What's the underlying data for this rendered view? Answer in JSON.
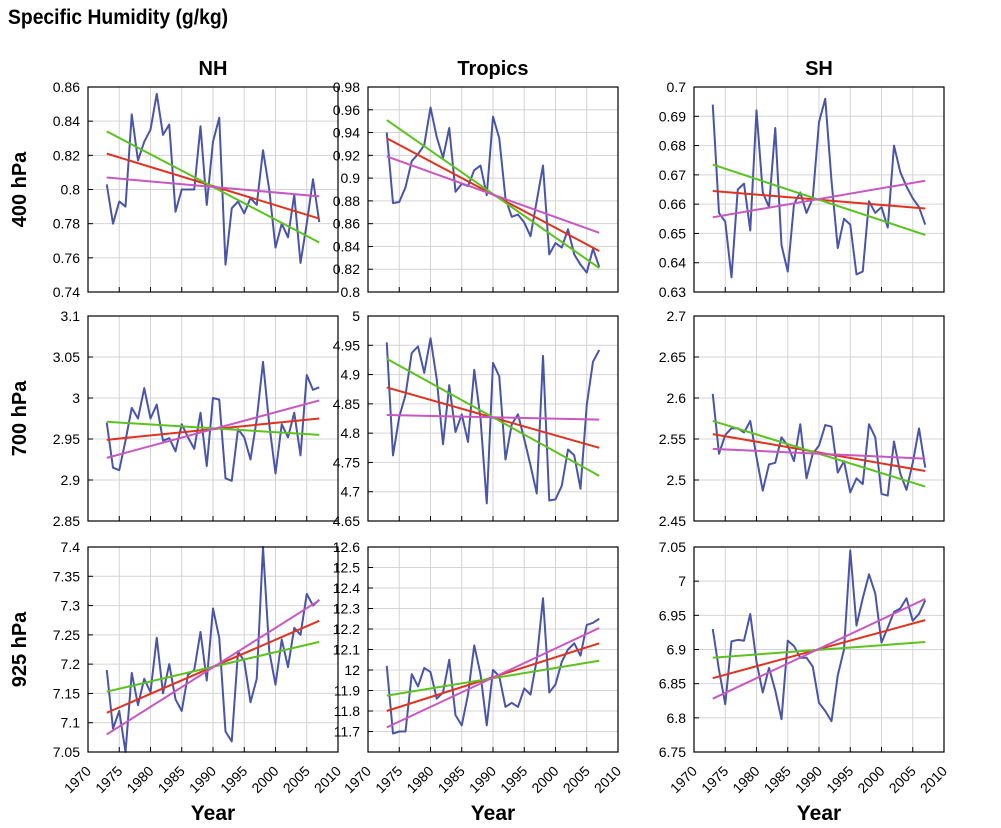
{
  "figure": {
    "title": "Specific Humidity (g/kg)",
    "x_axis_label": "Year",
    "x_ticks": [
      "1970",
      "1975",
      "1980",
      "1985",
      "1990",
      "1995",
      "2000",
      "2005",
      "2010"
    ],
    "x_range": [
      1970,
      2010
    ],
    "columns": [
      "NH",
      "Tropics",
      "SH"
    ],
    "rows": [
      "400 hPa",
      "700 hPa",
      "925 hPa"
    ],
    "colors": {
      "data": "#4a55a8",
      "trend_red": "#e0321e",
      "trend_green": "#5cc21e",
      "trend_magenta": "#c857c2",
      "grid": "#d4d4d4",
      "frame": "#000000"
    },
    "grid": true
  },
  "chart_data": [
    {
      "type": "line",
      "row": "400 hPa",
      "column": "NH",
      "x_start": 1973,
      "x_step": 1,
      "ylim": [
        0.74,
        0.86
      ],
      "yticks": [
        "0.74",
        "0.76",
        "0.78",
        "0.8",
        "0.82",
        "0.84",
        "0.86"
      ],
      "series": [
        {
          "values": [
            0.803,
            0.78,
            0.793,
            0.79,
            0.844,
            0.817,
            0.828,
            0.835,
            0.856,
            0.832,
            0.838,
            0.787,
            0.8,
            0.8,
            0.8,
            0.837,
            0.791,
            0.828,
            0.842,
            0.756,
            0.789,
            0.793,
            0.786,
            0.795,
            0.791,
            0.823,
            0.8,
            0.766,
            0.78,
            0.772,
            0.797,
            0.757,
            0.78,
            0.806,
            0.781
          ]
        }
      ],
      "trends": [
        {
          "color": "red",
          "x": [
            1973,
            2007
          ],
          "y": [
            0.821,
            0.783
          ]
        },
        {
          "color": "green",
          "x": [
            1973,
            2007
          ],
          "y": [
            0.834,
            0.769
          ]
        },
        {
          "color": "magenta",
          "x": [
            1973,
            2007
          ],
          "y": [
            0.807,
            0.796
          ]
        }
      ]
    },
    {
      "type": "line",
      "row": "400 hPa",
      "column": "Tropics",
      "x_start": 1973,
      "x_step": 1,
      "ylim": [
        0.8,
        0.98
      ],
      "yticks": [
        "0.8",
        "0.82",
        "0.84",
        "0.86",
        "0.88",
        "0.9",
        "0.92",
        "0.94",
        "0.96",
        "0.98"
      ],
      "series": [
        {
          "values": [
            0.94,
            0.878,
            0.879,
            0.892,
            0.915,
            0.921,
            0.929,
            0.962,
            0.936,
            0.918,
            0.944,
            0.888,
            0.895,
            0.893,
            0.907,
            0.911,
            0.885,
            0.954,
            0.935,
            0.882,
            0.866,
            0.868,
            0.861,
            0.849,
            0.88,
            0.911,
            0.833,
            0.843,
            0.839,
            0.855,
            0.833,
            0.824,
            0.817,
            0.838,
            0.822
          ]
        }
      ],
      "trends": [
        {
          "color": "red",
          "x": [
            1973,
            2007
          ],
          "y": [
            0.935,
            0.836
          ]
        },
        {
          "color": "green",
          "x": [
            1973,
            2007
          ],
          "y": [
            0.951,
            0.821
          ]
        },
        {
          "color": "magenta",
          "x": [
            1973,
            2007
          ],
          "y": [
            0.919,
            0.852
          ]
        }
      ]
    },
    {
      "type": "line",
      "row": "400 hPa",
      "column": "SH",
      "x_start": 1973,
      "x_step": 1,
      "ylim": [
        0.63,
        0.7
      ],
      "yticks": [
        "0.63",
        "0.64",
        "0.65",
        "0.66",
        "0.67",
        "0.68",
        "0.69",
        "0.7"
      ],
      "series": [
        {
          "values": [
            0.694,
            0.657,
            0.654,
            0.635,
            0.665,
            0.667,
            0.651,
            0.692,
            0.664,
            0.659,
            0.686,
            0.646,
            0.637,
            0.66,
            0.664,
            0.657,
            0.662,
            0.688,
            0.696,
            0.668,
            0.645,
            0.655,
            0.653,
            0.636,
            0.637,
            0.661,
            0.657,
            0.659,
            0.652,
            0.68,
            0.671,
            0.666,
            0.662,
            0.659,
            0.653
          ]
        }
      ],
      "trends": [
        {
          "color": "red",
          "x": [
            1973,
            2007
          ],
          "y": [
            0.6645,
            0.6585
          ]
        },
        {
          "color": "green",
          "x": [
            1973,
            2007
          ],
          "y": [
            0.6735,
            0.6495
          ]
        },
        {
          "color": "magenta",
          "x": [
            1973,
            2007
          ],
          "y": [
            0.6555,
            0.668
          ]
        }
      ]
    },
    {
      "type": "line",
      "row": "700 hPa",
      "column": "NH",
      "x_start": 1973,
      "x_step": 1,
      "ylim": [
        2.85,
        3.1
      ],
      "yticks": [
        "2.85",
        "2.9",
        "2.95",
        "3",
        "3.05",
        "3.1"
      ],
      "series": [
        {
          "values": [
            2.97,
            2.915,
            2.912,
            2.948,
            2.988,
            2.975,
            3.012,
            2.975,
            2.992,
            2.948,
            2.951,
            2.935,
            2.968,
            2.952,
            2.938,
            2.982,
            2.917,
            3.0,
            2.998,
            2.902,
            2.899,
            2.962,
            2.952,
            2.925,
            2.974,
            3.044,
            2.968,
            2.908,
            2.968,
            2.952,
            2.982,
            2.93,
            3.028,
            3.01,
            3.013
          ]
        }
      ],
      "trends": [
        {
          "color": "red",
          "x": [
            1973,
            2007
          ],
          "y": [
            2.949,
            2.975
          ]
        },
        {
          "color": "green",
          "x": [
            1973,
            2007
          ],
          "y": [
            2.971,
            2.955
          ]
        },
        {
          "color": "magenta",
          "x": [
            1973,
            2007
          ],
          "y": [
            2.927,
            2.997
          ]
        }
      ]
    },
    {
      "type": "line",
      "row": "700 hPa",
      "column": "Tropics",
      "x_start": 1973,
      "x_step": 1,
      "ylim": [
        4.65,
        5.0
      ],
      "yticks": [
        "4.65",
        "4.7",
        "4.75",
        "4.8",
        "4.85",
        "4.9",
        "4.95",
        "5"
      ],
      "series": [
        {
          "values": [
            4.955,
            4.762,
            4.828,
            4.865,
            4.937,
            4.948,
            4.903,
            4.962,
            4.892,
            4.781,
            4.882,
            4.802,
            4.832,
            4.785,
            4.908,
            4.825,
            4.68,
            4.92,
            4.897,
            4.755,
            4.815,
            4.832,
            4.79,
            4.745,
            4.697,
            4.932,
            4.685,
            4.687,
            4.71,
            4.772,
            4.762,
            4.705,
            4.848,
            4.922,
            4.942
          ]
        }
      ],
      "trends": [
        {
          "color": "red",
          "x": [
            1973,
            2007
          ],
          "y": [
            4.878,
            4.775
          ]
        },
        {
          "color": "green",
          "x": [
            1973,
            2007
          ],
          "y": [
            4.927,
            4.727
          ]
        },
        {
          "color": "magenta",
          "x": [
            1973,
            2007
          ],
          "y": [
            4.831,
            4.823
          ]
        }
      ]
    },
    {
      "type": "line",
      "row": "700 hPa",
      "column": "SH",
      "x_start": 1973,
      "x_step": 1,
      "ylim": [
        2.45,
        2.7
      ],
      "yticks": [
        "2.45",
        "2.5",
        "2.55",
        "2.6",
        "2.65",
        "2.7"
      ],
      "series": [
        {
          "values": [
            2.605,
            2.532,
            2.555,
            2.563,
            2.563,
            2.558,
            2.572,
            2.528,
            2.487,
            2.519,
            2.521,
            2.552,
            2.542,
            2.523,
            2.568,
            2.502,
            2.532,
            2.542,
            2.567,
            2.565,
            2.509,
            2.523,
            2.485,
            2.502,
            2.495,
            2.568,
            2.552,
            2.483,
            2.481,
            2.547,
            2.508,
            2.488,
            2.521,
            2.563,
            2.515
          ]
        }
      ],
      "trends": [
        {
          "color": "red",
          "x": [
            1973,
            2007
          ],
          "y": [
            2.556,
            2.511
          ]
        },
        {
          "color": "green",
          "x": [
            1973,
            2007
          ],
          "y": [
            2.572,
            2.492
          ]
        },
        {
          "color": "magenta",
          "x": [
            1973,
            2007
          ],
          "y": [
            2.538,
            2.526
          ]
        }
      ]
    },
    {
      "type": "line",
      "row": "925 hPa",
      "column": "NH",
      "x_start": 1973,
      "x_step": 1,
      "ylim": [
        7.05,
        7.4
      ],
      "yticks": [
        "7.05",
        "7.1",
        "7.15",
        "7.2",
        "7.25",
        "7.3",
        "7.35",
        "7.4"
      ],
      "series": [
        {
          "values": [
            7.19,
            7.09,
            7.12,
            7.05,
            7.185,
            7.13,
            7.175,
            7.152,
            7.245,
            7.15,
            7.2,
            7.14,
            7.12,
            7.182,
            7.19,
            7.255,
            7.172,
            7.295,
            7.245,
            7.085,
            7.068,
            7.222,
            7.205,
            7.135,
            7.175,
            7.4,
            7.222,
            7.165,
            7.242,
            7.195,
            7.262,
            7.25,
            7.32,
            7.3,
            7.31
          ]
        }
      ],
      "trends": [
        {
          "color": "red",
          "x": [
            1973,
            2007
          ],
          "y": [
            7.117,
            7.274
          ]
        },
        {
          "color": "green",
          "x": [
            1973,
            2007
          ],
          "y": [
            7.153,
            7.238
          ]
        },
        {
          "color": "magenta",
          "x": [
            1973,
            2007
          ],
          "y": [
            7.08,
            7.309
          ]
        }
      ]
    },
    {
      "type": "line",
      "row": "925 hPa",
      "column": "Tropics",
      "x_start": 1973,
      "x_step": 1,
      "ylim": [
        11.6,
        12.6
      ],
      "yticks": [
        "11.7",
        "11.8",
        "11.9",
        "12",
        "12.1",
        "12.2",
        "12.3",
        "12.4",
        "12.5",
        "12.6"
      ],
      "series": [
        {
          "values": [
            12.02,
            11.69,
            11.7,
            11.7,
            11.98,
            11.92,
            12.01,
            11.99,
            11.86,
            11.89,
            12.05,
            11.78,
            11.73,
            11.88,
            12.12,
            11.98,
            11.73,
            12.0,
            11.97,
            11.82,
            11.84,
            11.82,
            11.91,
            11.88,
            12.05,
            12.35,
            11.89,
            11.93,
            12.04,
            12.1,
            12.13,
            12.07,
            12.22,
            12.23,
            12.25
          ]
        }
      ],
      "trends": [
        {
          "color": "red",
          "x": [
            1973,
            2007
          ],
          "y": [
            11.8,
            12.13
          ]
        },
        {
          "color": "green",
          "x": [
            1973,
            2007
          ],
          "y": [
            11.875,
            12.045
          ]
        },
        {
          "color": "magenta",
          "x": [
            1973,
            2007
          ],
          "y": [
            11.72,
            12.205
          ]
        }
      ]
    },
    {
      "type": "line",
      "row": "925 hPa",
      "column": "SH",
      "x_start": 1973,
      "x_step": 1,
      "ylim": [
        6.75,
        7.05
      ],
      "yticks": [
        "6.75",
        "6.8",
        "6.85",
        "6.9",
        "6.95",
        "7",
        "7.05"
      ],
      "series": [
        {
          "values": [
            6.93,
            6.87,
            6.82,
            6.912,
            6.914,
            6.913,
            6.952,
            6.882,
            6.837,
            6.873,
            6.84,
            6.798,
            6.913,
            6.905,
            6.888,
            6.888,
            6.875,
            6.822,
            6.81,
            6.795,
            6.862,
            6.9,
            7.045,
            6.935,
            6.975,
            7.01,
            6.982,
            6.91,
            6.932,
            6.955,
            6.96,
            6.975,
            6.942,
            6.952,
            6.972
          ]
        }
      ],
      "trends": [
        {
          "color": "red",
          "x": [
            1973,
            2007
          ],
          "y": [
            6.858,
            6.943
          ]
        },
        {
          "color": "green",
          "x": [
            1973,
            2007
          ],
          "y": [
            6.888,
            6.911
          ]
        },
        {
          "color": "magenta",
          "x": [
            1973,
            2007
          ],
          "y": [
            6.828,
            6.974
          ]
        }
      ]
    }
  ]
}
